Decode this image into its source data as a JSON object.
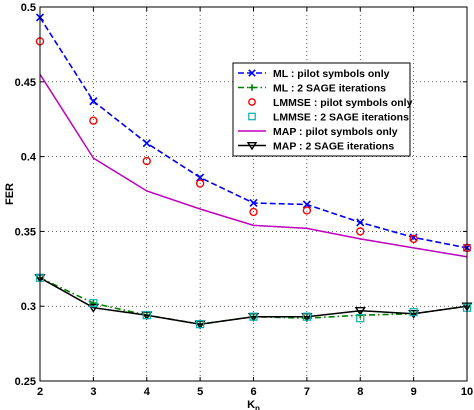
{
  "chart_data": {
    "type": "line",
    "title": "",
    "xlabel_main": "K",
    "xlabel_sub": "p",
    "ylabel": "FER",
    "xlim": [
      2,
      10
    ],
    "ylim": [
      0.25,
      0.5
    ],
    "xticks": [
      "2",
      "3",
      "4",
      "5",
      "6",
      "7",
      "8",
      "9",
      "10"
    ],
    "yticks": [
      "0.25",
      "0.3",
      "0.35",
      "0.4",
      "0.45",
      "0.5"
    ],
    "grid": true,
    "legend_position": "top-right",
    "x": [
      2,
      3,
      4,
      5,
      6,
      7,
      8,
      9,
      10
    ],
    "series": [
      {
        "name": "ML : pilot symbols only",
        "color": "#0000ff",
        "line": "dashed",
        "marker": "x",
        "values": [
          0.493,
          0.437,
          0.409,
          0.386,
          0.369,
          0.368,
          0.356,
          0.346,
          0.339
        ]
      },
      {
        "name": "ML : 2 SAGE iterations",
        "color": "#008000",
        "line": "dashdot",
        "marker": "plus",
        "values": [
          0.319,
          0.302,
          0.294,
          0.288,
          0.293,
          0.292,
          0.294,
          0.295,
          0.3
        ]
      },
      {
        "name": "LMMSE : pilot symbols only",
        "color": "#ff0000",
        "line": "none",
        "marker": "circle",
        "values": [
          0.477,
          0.424,
          0.397,
          0.382,
          0.363,
          0.364,
          0.35,
          0.345,
          0.339
        ]
      },
      {
        "name": "LMMSE : 2 SAGE iterations",
        "color": "#00b0b0",
        "line": "none",
        "marker": "square",
        "values": [
          0.319,
          0.302,
          0.294,
          0.288,
          0.293,
          0.293,
          0.292,
          0.296,
          0.299
        ]
      },
      {
        "name": "MAP : pilot symbols only",
        "color": "#c000c0",
        "line": "solid",
        "marker": "none",
        "values": [
          0.455,
          0.399,
          0.377,
          0.365,
          0.354,
          0.352,
          0.345,
          0.339,
          0.333
        ]
      },
      {
        "name": "MAP : 2 SAGE iterations",
        "color": "#000000",
        "line": "solid",
        "marker": "triangle-down",
        "values": [
          0.319,
          0.299,
          0.294,
          0.288,
          0.293,
          0.293,
          0.297,
          0.295,
          0.3
        ]
      }
    ]
  }
}
